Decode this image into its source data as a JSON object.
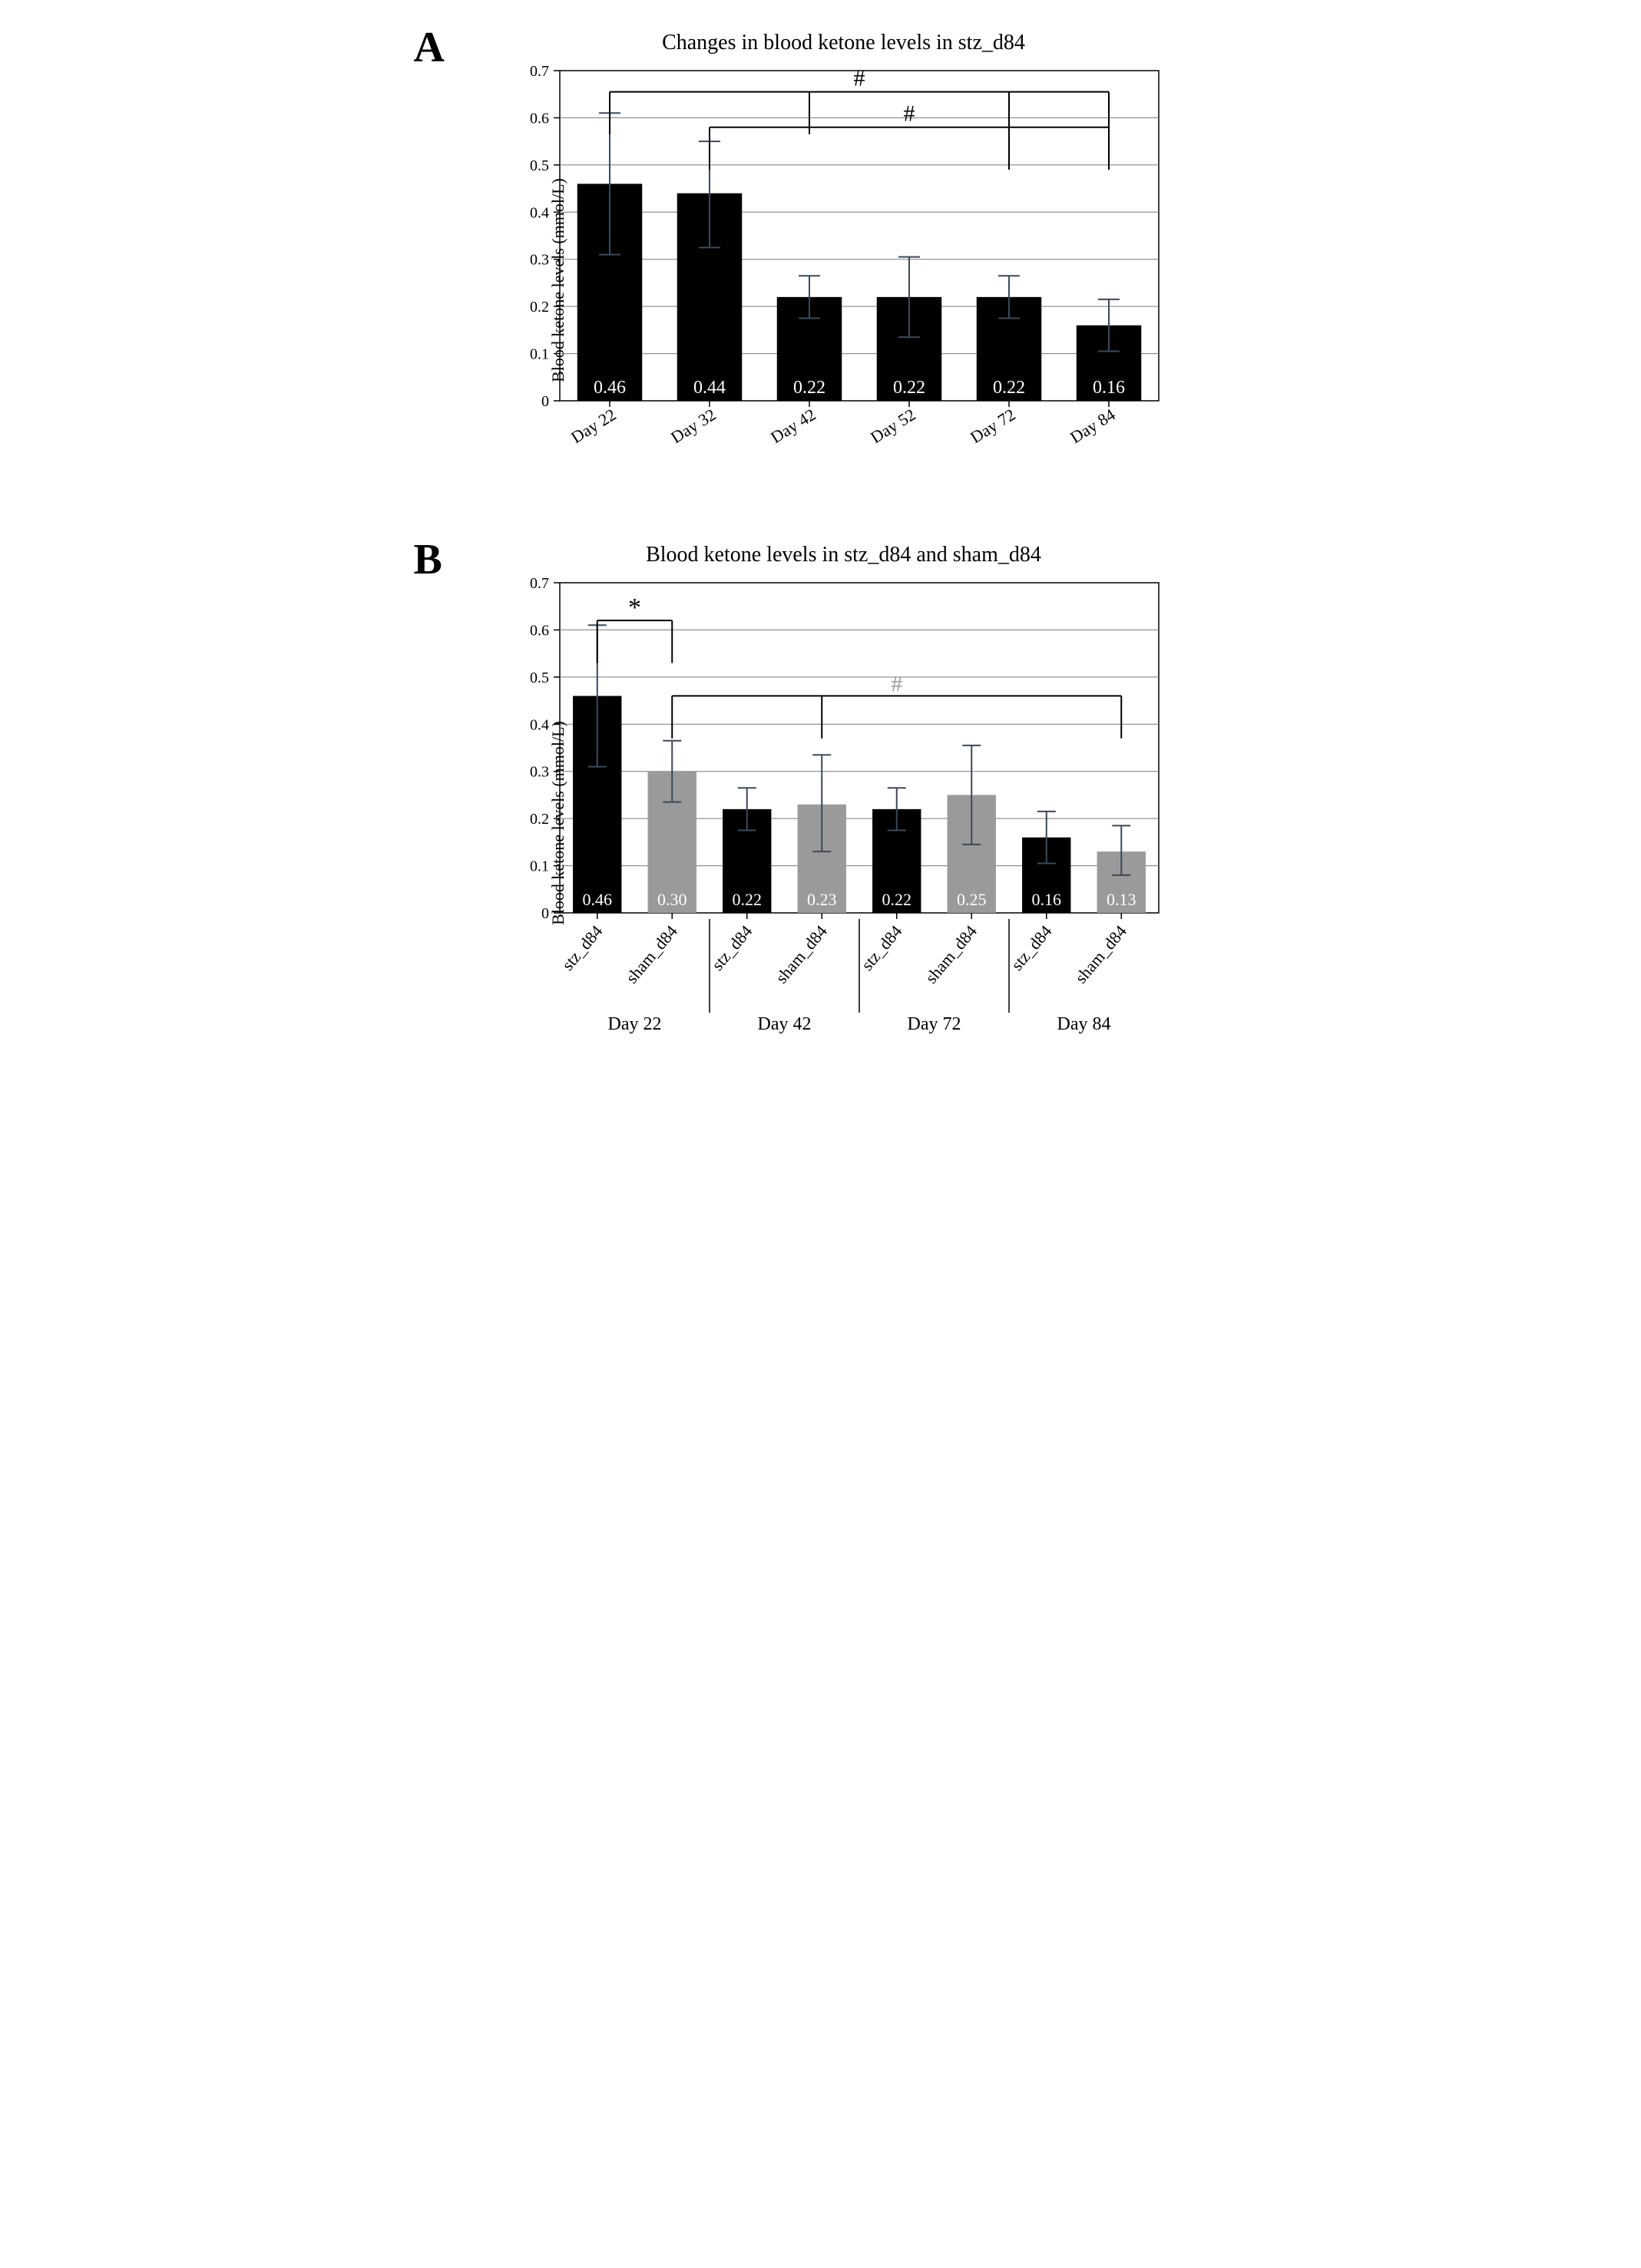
{
  "panelA": {
    "label": "A",
    "title": "Changes in blood ketone levels in stz_d84",
    "ylabel": "Blood ketone levels (mmol/L)",
    "ylim": [
      0,
      0.7
    ],
    "ytick_step": 0.1,
    "bar_color": "#000000",
    "value_color": "#ffffff",
    "value_fontsize": 24,
    "error_color": "#3a4a5a",
    "grid_color": "#7a7a7a",
    "axis_color": "#000000",
    "background": "#ffffff",
    "bar_width": 0.65,
    "categories": [
      "Day 22",
      "Day 32",
      "Day 42",
      "Day 52",
      "Day 72",
      "Day 84"
    ],
    "values": [
      0.46,
      0.44,
      0.22,
      0.22,
      0.22,
      0.16
    ],
    "err_up": [
      0.15,
      0.11,
      0.045,
      0.085,
      0.045,
      0.055
    ],
    "err_dn": [
      0.15,
      0.115,
      0.045,
      0.085,
      0.045,
      0.055
    ],
    "sig_brackets": [
      {
        "from_bars": [
          0
        ],
        "to_bars": [
          2,
          4,
          5
        ],
        "y": 0.655,
        "tick": 0.015,
        "label": "#",
        "label_color": "#000000"
      },
      {
        "from_bars": [
          1
        ],
        "to_bars": [
          4,
          5
        ],
        "y": 0.58,
        "tick": 0.015,
        "label": "#",
        "label_color": "#000000"
      }
    ]
  },
  "panelB": {
    "label": "B",
    "title": "Blood ketone levels in stz_d84 and sham_d84",
    "ylabel": "Blood ketone levels (mmol/L)",
    "ylim": [
      0,
      0.7
    ],
    "ytick_step": 0.1,
    "axis_color": "#000000",
    "grid_color": "#7a7a7a",
    "error_color": "#3a4a5a",
    "background": "#ffffff",
    "bar_width": 0.65,
    "groups": [
      "Day 22",
      "Day 42",
      "Day 72",
      "Day 84"
    ],
    "series": [
      {
        "name": "stz_d84",
        "color": "#000000",
        "label_color": "#ffffff"
      },
      {
        "name": "sham_d84",
        "color": "#9a9a9a",
        "label_color": "#ffffff"
      }
    ],
    "bars": [
      {
        "group": 0,
        "series": 0,
        "value": 0.46,
        "err_up": 0.15,
        "err_dn": 0.15
      },
      {
        "group": 0,
        "series": 1,
        "value": 0.3,
        "err_up": 0.065,
        "err_dn": 0.065
      },
      {
        "group": 1,
        "series": 0,
        "value": 0.22,
        "err_up": 0.045,
        "err_dn": 0.045
      },
      {
        "group": 1,
        "series": 1,
        "value": 0.23,
        "err_up": 0.105,
        "err_dn": 0.1
      },
      {
        "group": 2,
        "series": 0,
        "value": 0.22,
        "err_up": 0.045,
        "err_dn": 0.045
      },
      {
        "group": 2,
        "series": 1,
        "value": 0.25,
        "err_up": 0.105,
        "err_dn": 0.105
      },
      {
        "group": 3,
        "series": 0,
        "value": 0.16,
        "err_up": 0.055,
        "err_dn": 0.055
      },
      {
        "group": 3,
        "series": 1,
        "value": 0.13,
        "err_up": 0.055,
        "err_dn": 0.05
      }
    ],
    "sig_brackets": [
      {
        "from_bar": 0,
        "to_bar": 1,
        "y": 0.62,
        "tick": 0.015,
        "label": "*",
        "label_color": "#000000"
      },
      {
        "from_bar": 1,
        "to_bars": [
          3,
          7
        ],
        "y": 0.46,
        "tick": 0.015,
        "label": "#",
        "label_color": "#9a9a9a"
      }
    ],
    "xlabel_rotation": -50
  },
  "layout": {
    "title_fontsize": 28,
    "panel_label_fontsize": 56,
    "tick_fontsize": 20,
    "xlabel_fontsize": 22,
    "group_label_fontsize": 24
  }
}
